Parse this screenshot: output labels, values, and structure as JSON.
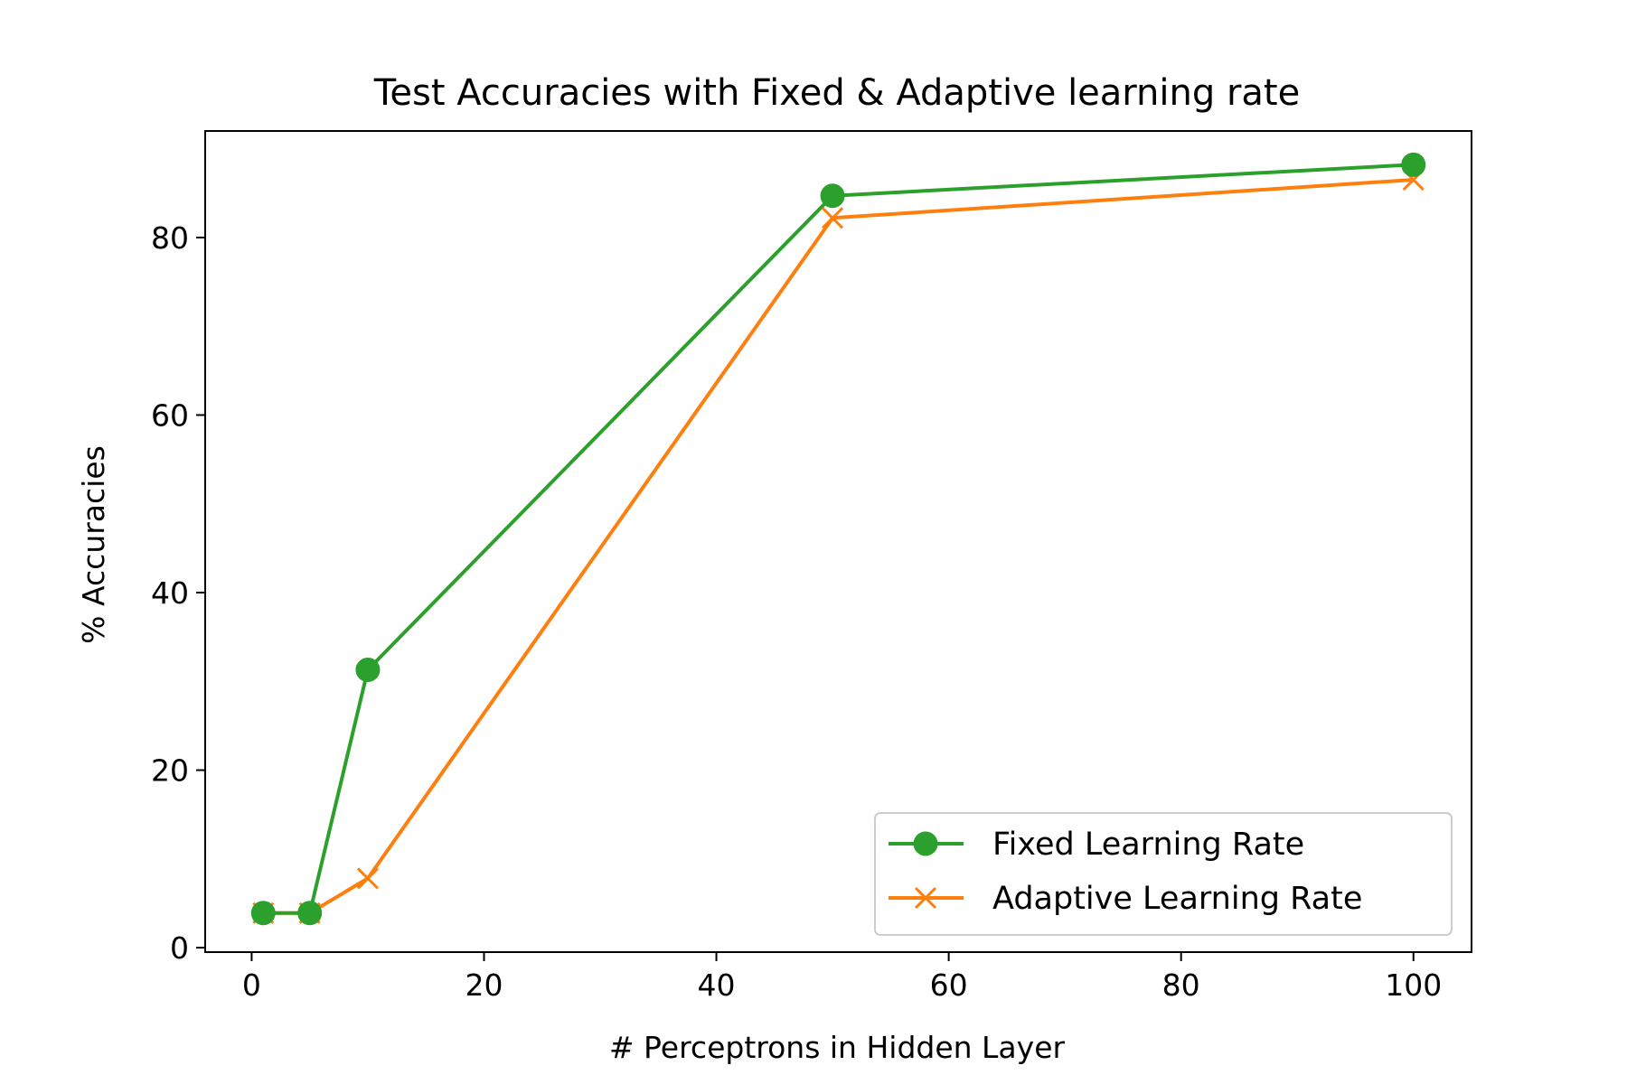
{
  "chart_data": {
    "type": "line",
    "title": "Test Accuracies with Fixed & Adaptive learning rate",
    "xlabel": "# Perceptrons in Hidden Layer",
    "ylabel": "% Accuracies",
    "xlim": [
      -4,
      105
    ],
    "ylim": [
      -0.5,
      92
    ],
    "xticks": [
      0,
      20,
      40,
      60,
      80,
      100
    ],
    "yticks": [
      0,
      20,
      40,
      60,
      80
    ],
    "x": [
      1,
      5,
      10,
      50,
      100
    ],
    "series": [
      {
        "name": "Fixed Learning Rate",
        "values": [
          3.9,
          3.9,
          31.3,
          84.7,
          88.2
        ],
        "color": "#2ca02c",
        "marker": "circle"
      },
      {
        "name": "Adaptive Learning Rate",
        "values": [
          3.9,
          3.9,
          7.8,
          82.2,
          86.5
        ],
        "color": "#ff7f0e",
        "marker": "x"
      }
    ],
    "grid": false,
    "legend_position": "lower-right"
  }
}
